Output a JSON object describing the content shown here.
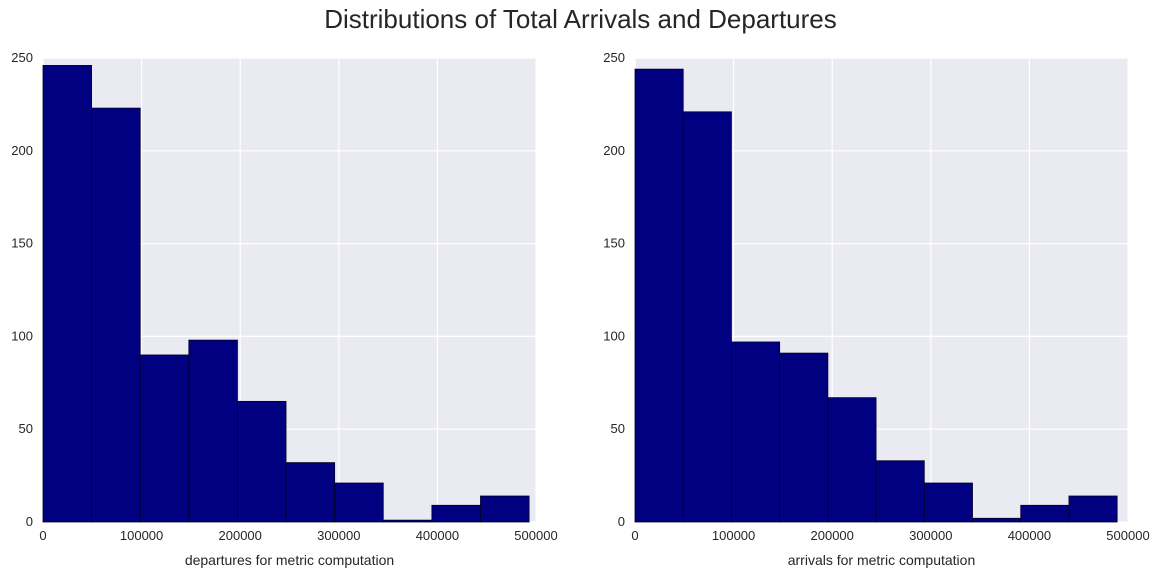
{
  "figure_title": "Distributions of Total Arrivals and Departures",
  "colors": {
    "bar": "#000080",
    "bar_edge": "#00002a",
    "plot_bg": "#eaeaf2",
    "grid": "#ffffff"
  },
  "chart_data": [
    {
      "type": "bar",
      "title": "",
      "xlabel": "departures for metric computation",
      "ylabel": "",
      "xlim": [
        0,
        500000
      ],
      "ylim": [
        0,
        250
      ],
      "bin_edges": [
        0,
        49300,
        98600,
        147900,
        197200,
        246500,
        295800,
        345100,
        394400,
        443700,
        493000
      ],
      "values": [
        246,
        223,
        90,
        98,
        65,
        32,
        21,
        1,
        9,
        14
      ],
      "xticks": [
        "0",
        "100000",
        "200000",
        "300000",
        "400000",
        "500000"
      ],
      "yticks": [
        "0",
        "50",
        "100",
        "150",
        "200",
        "250"
      ],
      "grid": true
    },
    {
      "type": "bar",
      "title": "",
      "xlabel": "arrivals for metric computation",
      "ylabel": "",
      "xlim": [
        0,
        500000
      ],
      "ylim": [
        0,
        250
      ],
      "bin_edges": [
        0,
        48900,
        97800,
        146700,
        195600,
        244500,
        293400,
        342300,
        391200,
        440100,
        489000
      ],
      "values": [
        244,
        221,
        97,
        91,
        67,
        33,
        21,
        2,
        9,
        14
      ],
      "xticks": [
        "0",
        "100000",
        "200000",
        "300000",
        "400000",
        "500000"
      ],
      "yticks": [
        "0",
        "50",
        "100",
        "150",
        "200",
        "250"
      ],
      "grid": true
    }
  ]
}
